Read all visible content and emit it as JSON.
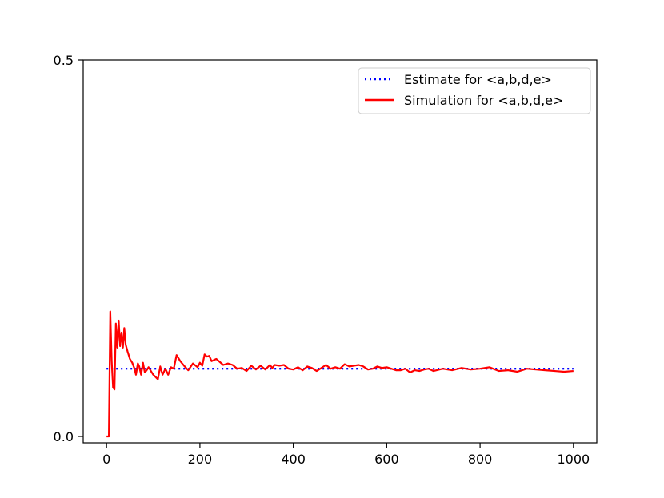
{
  "chart_data": {
    "type": "line",
    "xlim": [
      -50,
      1050
    ],
    "ylim": [
      -0.0085,
      0.5
    ],
    "xticks": [
      0,
      200,
      400,
      600,
      800,
      1000
    ],
    "xtick_labels": [
      "0",
      "200",
      "400",
      "600",
      "800",
      "1000"
    ],
    "yticks": [
      0.0,
      0.5
    ],
    "ytick_labels": [
      "0.0",
      "0.5"
    ],
    "grid": false,
    "legend_position": "top-right",
    "series": [
      {
        "name": "Estimate for <a,b,d,e>",
        "style": "dotted",
        "color": "#0000ff",
        "x": [
          0,
          1000
        ],
        "y": [
          0.09,
          0.09
        ]
      },
      {
        "name": "Simulation for <a,b,d,e>",
        "style": "solid",
        "color": "#ff0000",
        "x": [
          0,
          5,
          8,
          11,
          14,
          17,
          20,
          23,
          26,
          29,
          32,
          35,
          38,
          41,
          45,
          50,
          55,
          60,
          63,
          67,
          70,
          74,
          78,
          82,
          86,
          90,
          95,
          100,
          105,
          110,
          115,
          120,
          126,
          132,
          138,
          144,
          150,
          158,
          166,
          175,
          185,
          195,
          200,
          205,
          210,
          215,
          220,
          225,
          235,
          250,
          260,
          270,
          280,
          290,
          300,
          310,
          320,
          330,
          340,
          350,
          355,
          360,
          370,
          380,
          390,
          400,
          410,
          420,
          430,
          440,
          450,
          460,
          470,
          480,
          490,
          500,
          510,
          520,
          530,
          540,
          550,
          560,
          570,
          580,
          590,
          600,
          610,
          620,
          630,
          640,
          650,
          660,
          670,
          680,
          690,
          700,
          720,
          740,
          760,
          780,
          800,
          820,
          840,
          860,
          880,
          900,
          920,
          940,
          960,
          980,
          1000
        ],
        "y": [
          0.0,
          0.0,
          0.166,
          0.1,
          0.065,
          0.0625,
          0.15,
          0.118,
          0.154,
          0.12,
          0.138,
          0.118,
          0.144,
          0.122,
          0.113,
          0.103,
          0.098,
          0.09,
          0.082,
          0.097,
          0.093,
          0.082,
          0.098,
          0.085,
          0.088,
          0.092,
          0.087,
          0.082,
          0.079,
          0.076,
          0.093,
          0.082,
          0.09,
          0.082,
          0.092,
          0.09,
          0.108,
          0.1,
          0.094,
          0.088,
          0.097,
          0.092,
          0.098,
          0.094,
          0.109,
          0.106,
          0.107,
          0.1,
          0.103,
          0.095,
          0.097,
          0.095,
          0.09,
          0.091,
          0.087,
          0.094,
          0.089,
          0.094,
          0.089,
          0.095,
          0.091,
          0.095,
          0.094,
          0.095,
          0.09,
          0.089,
          0.092,
          0.088,
          0.093,
          0.091,
          0.087,
          0.091,
          0.095,
          0.09,
          0.092,
          0.09,
          0.096,
          0.093,
          0.094,
          0.095,
          0.093,
          0.089,
          0.09,
          0.093,
          0.091,
          0.092,
          0.09,
          0.088,
          0.088,
          0.09,
          0.085,
          0.088,
          0.087,
          0.089,
          0.09,
          0.087,
          0.09,
          0.088,
          0.091,
          0.089,
          0.09,
          0.092,
          0.087,
          0.088,
          0.086,
          0.09,
          0.089,
          0.088,
          0.087,
          0.086,
          0.087
        ]
      }
    ]
  }
}
